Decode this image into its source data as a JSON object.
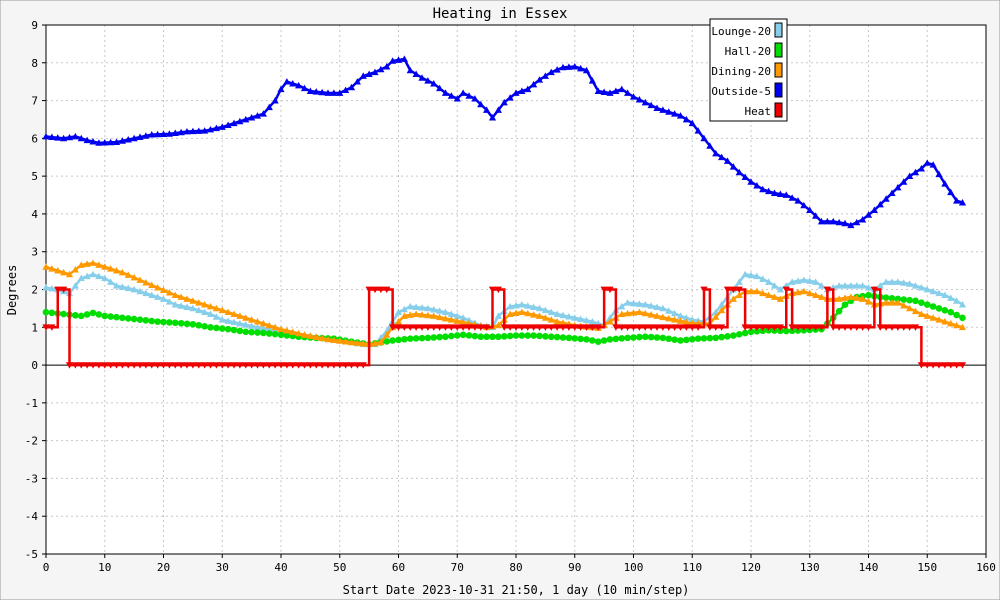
{
  "chart_data": {
    "type": "line",
    "title": "Heating in Essex",
    "xlabel": "Start Date 2023-10-31 21:50, 1 day (10 min/step)",
    "ylabel": "Degrees",
    "xlim": [
      0,
      160
    ],
    "ylim": [
      -5,
      9
    ],
    "xticks": [
      0,
      10,
      20,
      30,
      40,
      50,
      60,
      70,
      80,
      90,
      100,
      110,
      120,
      130,
      140,
      150,
      160
    ],
    "yticks": [
      -5,
      -4,
      -3,
      -2,
      -1,
      0,
      1,
      2,
      3,
      4,
      5,
      6,
      7,
      8,
      9
    ],
    "grid": true,
    "legend_position": "top-right",
    "series": [
      {
        "name": "Lounge-20",
        "color": "#87ceeb",
        "marker": "triangle-up",
        "points": [
          [
            0,
            2.05
          ],
          [
            2,
            2.0
          ],
          [
            4,
            1.9
          ],
          [
            6,
            2.3
          ],
          [
            8,
            2.4
          ],
          [
            10,
            2.3
          ],
          [
            12,
            2.1
          ],
          [
            15,
            2.0
          ],
          [
            18,
            1.85
          ],
          [
            20,
            1.75
          ],
          [
            22,
            1.6
          ],
          [
            25,
            1.5
          ],
          [
            28,
            1.35
          ],
          [
            30,
            1.2
          ],
          [
            33,
            1.1
          ],
          [
            36,
            1.0
          ],
          [
            40,
            0.9
          ],
          [
            44,
            0.8
          ],
          [
            48,
            0.7
          ],
          [
            52,
            0.6
          ],
          [
            54,
            0.55
          ],
          [
            56,
            0.55
          ],
          [
            58,
            0.9
          ],
          [
            60,
            1.4
          ],
          [
            62,
            1.55
          ],
          [
            65,
            1.5
          ],
          [
            68,
            1.4
          ],
          [
            71,
            1.25
          ],
          [
            74,
            1.05
          ],
          [
            76,
            1.0
          ],
          [
            77,
            1.3
          ],
          [
            79,
            1.55
          ],
          [
            81,
            1.6
          ],
          [
            84,
            1.5
          ],
          [
            87,
            1.35
          ],
          [
            90,
            1.25
          ],
          [
            93,
            1.15
          ],
          [
            95,
            1.05
          ],
          [
            97,
            1.45
          ],
          [
            99,
            1.65
          ],
          [
            102,
            1.6
          ],
          [
            105,
            1.5
          ],
          [
            108,
            1.3
          ],
          [
            110,
            1.2
          ],
          [
            112,
            1.15
          ],
          [
            114,
            1.4
          ],
          [
            116,
            1.8
          ],
          [
            118,
            2.2
          ],
          [
            119,
            2.4
          ],
          [
            121,
            2.35
          ],
          [
            123,
            2.2
          ],
          [
            125,
            2.0
          ],
          [
            127,
            2.2
          ],
          [
            129,
            2.25
          ],
          [
            131,
            2.2
          ],
          [
            133,
            2.0
          ],
          [
            135,
            2.1
          ],
          [
            137,
            2.1
          ],
          [
            139,
            2.1
          ],
          [
            141,
            2.0
          ],
          [
            143,
            2.2
          ],
          [
            145,
            2.2
          ],
          [
            147,
            2.15
          ],
          [
            149,
            2.05
          ],
          [
            151,
            1.95
          ],
          [
            153,
            1.85
          ],
          [
            155,
            1.7
          ],
          [
            156,
            1.6
          ]
        ]
      },
      {
        "name": "Hall-20",
        "color": "#00dd00",
        "marker": "circle",
        "points": [
          [
            0,
            1.4
          ],
          [
            3,
            1.35
          ],
          [
            6,
            1.3
          ],
          [
            8,
            1.38
          ],
          [
            10,
            1.3
          ],
          [
            13,
            1.25
          ],
          [
            16,
            1.2
          ],
          [
            19,
            1.15
          ],
          [
            22,
            1.12
          ],
          [
            25,
            1.08
          ],
          [
            28,
            1.0
          ],
          [
            31,
            0.95
          ],
          [
            34,
            0.88
          ],
          [
            37,
            0.85
          ],
          [
            40,
            0.8
          ],
          [
            43,
            0.75
          ],
          [
            46,
            0.72
          ],
          [
            49,
            0.7
          ],
          [
            52,
            0.62
          ],
          [
            55,
            0.55
          ],
          [
            57,
            0.6
          ],
          [
            59,
            0.65
          ],
          [
            62,
            0.7
          ],
          [
            65,
            0.72
          ],
          [
            68,
            0.75
          ],
          [
            71,
            0.8
          ],
          [
            74,
            0.75
          ],
          [
            77,
            0.75
          ],
          [
            80,
            0.78
          ],
          [
            83,
            0.78
          ],
          [
            86,
            0.75
          ],
          [
            89,
            0.72
          ],
          [
            92,
            0.68
          ],
          [
            94,
            0.62
          ],
          [
            96,
            0.68
          ],
          [
            99,
            0.72
          ],
          [
            102,
            0.75
          ],
          [
            105,
            0.72
          ],
          [
            108,
            0.65
          ],
          [
            111,
            0.7
          ],
          [
            114,
            0.72
          ],
          [
            117,
            0.78
          ],
          [
            120,
            0.88
          ],
          [
            123,
            0.92
          ],
          [
            126,
            0.9
          ],
          [
            129,
            0.92
          ],
          [
            132,
            0.95
          ],
          [
            134,
            1.25
          ],
          [
            136,
            1.6
          ],
          [
            138,
            1.8
          ],
          [
            140,
            1.85
          ],
          [
            142,
            1.8
          ],
          [
            145,
            1.75
          ],
          [
            148,
            1.7
          ],
          [
            151,
            1.55
          ],
          [
            154,
            1.4
          ],
          [
            156,
            1.25
          ]
        ]
      },
      {
        "name": "Dining-20",
        "color": "#ff9900",
        "marker": "triangle-up",
        "points": [
          [
            0,
            2.6
          ],
          [
            2,
            2.5
          ],
          [
            4,
            2.4
          ],
          [
            6,
            2.65
          ],
          [
            8,
            2.7
          ],
          [
            10,
            2.6
          ],
          [
            13,
            2.45
          ],
          [
            16,
            2.25
          ],
          [
            19,
            2.05
          ],
          [
            22,
            1.85
          ],
          [
            25,
            1.7
          ],
          [
            28,
            1.55
          ],
          [
            31,
            1.4
          ],
          [
            34,
            1.25
          ],
          [
            37,
            1.1
          ],
          [
            40,
            0.95
          ],
          [
            44,
            0.8
          ],
          [
            48,
            0.68
          ],
          [
            52,
            0.6
          ],
          [
            55,
            0.55
          ],
          [
            57,
            0.6
          ],
          [
            59,
            1.0
          ],
          [
            61,
            1.3
          ],
          [
            63,
            1.35
          ],
          [
            66,
            1.3
          ],
          [
            69,
            1.2
          ],
          [
            72,
            1.1
          ],
          [
            75,
            1.0
          ],
          [
            77,
            1.05
          ],
          [
            79,
            1.35
          ],
          [
            81,
            1.4
          ],
          [
            84,
            1.3
          ],
          [
            87,
            1.15
          ],
          [
            90,
            1.05
          ],
          [
            94,
            0.98
          ],
          [
            96,
            1.15
          ],
          [
            98,
            1.35
          ],
          [
            101,
            1.4
          ],
          [
            104,
            1.3
          ],
          [
            107,
            1.2
          ],
          [
            110,
            1.1
          ],
          [
            113,
            1.1
          ],
          [
            115,
            1.45
          ],
          [
            117,
            1.75
          ],
          [
            119,
            1.95
          ],
          [
            121,
            1.95
          ],
          [
            123,
            1.85
          ],
          [
            125,
            1.75
          ],
          [
            127,
            1.9
          ],
          [
            129,
            1.95
          ],
          [
            131,
            1.85
          ],
          [
            133,
            1.75
          ],
          [
            135,
            1.75
          ],
          [
            137,
            1.8
          ],
          [
            139,
            1.75
          ],
          [
            141,
            1.6
          ],
          [
            143,
            1.65
          ],
          [
            145,
            1.65
          ],
          [
            147,
            1.5
          ],
          [
            149,
            1.35
          ],
          [
            151,
            1.25
          ],
          [
            153,
            1.15
          ],
          [
            155,
            1.05
          ],
          [
            156,
            1.0
          ]
        ]
      },
      {
        "name": "Outside-5",
        "color": "#0000ee",
        "marker": "triangle-up",
        "points": [
          [
            0,
            6.05
          ],
          [
            3,
            6.0
          ],
          [
            5,
            6.05
          ],
          [
            7,
            5.95
          ],
          [
            9,
            5.88
          ],
          [
            12,
            5.9
          ],
          [
            15,
            6.0
          ],
          [
            18,
            6.1
          ],
          [
            21,
            6.12
          ],
          [
            24,
            6.18
          ],
          [
            27,
            6.2
          ],
          [
            30,
            6.3
          ],
          [
            33,
            6.45
          ],
          [
            35,
            6.55
          ],
          [
            37,
            6.65
          ],
          [
            39,
            7.0
          ],
          [
            40,
            7.3
          ],
          [
            41,
            7.5
          ],
          [
            43,
            7.4
          ],
          [
            45,
            7.25
          ],
          [
            48,
            7.2
          ],
          [
            50,
            7.2
          ],
          [
            52,
            7.35
          ],
          [
            54,
            7.65
          ],
          [
            56,
            7.75
          ],
          [
            58,
            7.9
          ],
          [
            59,
            8.05
          ],
          [
            61,
            8.1
          ],
          [
            62,
            7.8
          ],
          [
            64,
            7.6
          ],
          [
            66,
            7.45
          ],
          [
            68,
            7.2
          ],
          [
            70,
            7.05
          ],
          [
            71,
            7.2
          ],
          [
            73,
            7.05
          ],
          [
            75,
            6.75
          ],
          [
            76,
            6.55
          ],
          [
            78,
            6.95
          ],
          [
            80,
            7.2
          ],
          [
            82,
            7.3
          ],
          [
            84,
            7.55
          ],
          [
            86,
            7.75
          ],
          [
            88,
            7.88
          ],
          [
            90,
            7.9
          ],
          [
            92,
            7.8
          ],
          [
            94,
            7.25
          ],
          [
            96,
            7.2
          ],
          [
            98,
            7.3
          ],
          [
            100,
            7.1
          ],
          [
            102,
            6.95
          ],
          [
            104,
            6.8
          ],
          [
            106,
            6.7
          ],
          [
            108,
            6.6
          ],
          [
            110,
            6.4
          ],
          [
            112,
            6.0
          ],
          [
            114,
            5.6
          ],
          [
            116,
            5.4
          ],
          [
            118,
            5.1
          ],
          [
            120,
            4.85
          ],
          [
            122,
            4.65
          ],
          [
            124,
            4.55
          ],
          [
            126,
            4.5
          ],
          [
            128,
            4.35
          ],
          [
            130,
            4.1
          ],
          [
            132,
            3.8
          ],
          [
            134,
            3.8
          ],
          [
            136,
            3.75
          ],
          [
            137,
            3.7
          ],
          [
            139,
            3.85
          ],
          [
            141,
            4.1
          ],
          [
            143,
            4.4
          ],
          [
            145,
            4.7
          ],
          [
            147,
            5.0
          ],
          [
            149,
            5.2
          ],
          [
            150,
            5.35
          ],
          [
            151,
            5.3
          ],
          [
            153,
            4.8
          ],
          [
            155,
            4.35
          ],
          [
            156,
            4.3
          ]
        ]
      },
      {
        "name": "Heat",
        "color": "#ee0000",
        "marker": "triangle-down",
        "step": true,
        "points": [
          [
            0,
            1
          ],
          [
            1,
            1
          ],
          [
            2,
            2
          ],
          [
            3,
            2
          ],
          [
            4,
            0
          ],
          [
            5,
            0
          ],
          [
            53,
            0
          ],
          [
            54,
            0
          ],
          [
            55,
            2
          ],
          [
            58,
            2
          ],
          [
            59,
            1
          ],
          [
            75,
            1
          ],
          [
            76,
            2
          ],
          [
            77,
            2
          ],
          [
            78,
            1
          ],
          [
            94,
            1
          ],
          [
            95,
            2
          ],
          [
            96,
            2
          ],
          [
            97,
            1
          ],
          [
            111,
            1
          ],
          [
            112,
            2
          ],
          [
            113,
            1
          ],
          [
            115,
            1
          ],
          [
            116,
            2
          ],
          [
            118,
            2
          ],
          [
            119,
            1
          ],
          [
            125,
            1
          ],
          [
            126,
            2
          ],
          [
            127,
            1
          ],
          [
            132,
            1
          ],
          [
            133,
            2
          ],
          [
            134,
            1
          ],
          [
            140,
            1
          ],
          [
            141,
            2
          ],
          [
            142,
            1
          ],
          [
            148,
            1
          ],
          [
            149,
            0
          ],
          [
            156,
            0
          ]
        ]
      }
    ]
  }
}
